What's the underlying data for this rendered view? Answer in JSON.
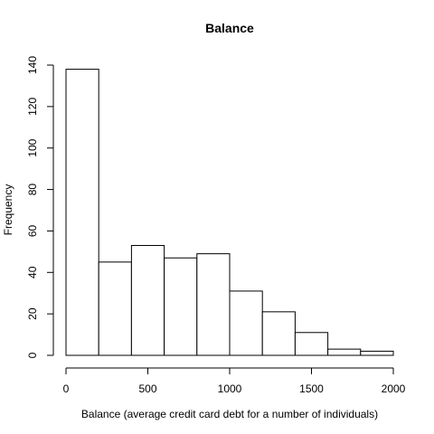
{
  "chart_data": {
    "type": "bar",
    "title": "Balance",
    "xlabel": "Balance (average credit card debt for a number of individuals)",
    "ylabel": "Frequency",
    "bins": [
      {
        "start": 0,
        "end": 200,
        "count": 138
      },
      {
        "start": 200,
        "end": 400,
        "count": 45
      },
      {
        "start": 400,
        "end": 600,
        "count": 53
      },
      {
        "start": 600,
        "end": 800,
        "count": 47
      },
      {
        "start": 800,
        "end": 1000,
        "count": 49
      },
      {
        "start": 1000,
        "end": 1200,
        "count": 31
      },
      {
        "start": 1200,
        "end": 1400,
        "count": 21
      },
      {
        "start": 1400,
        "end": 1600,
        "count": 11
      },
      {
        "start": 1600,
        "end": 1800,
        "count": 3
      },
      {
        "start": 1800,
        "end": 2000,
        "count": 2
      }
    ],
    "xlim": [
      0,
      2000
    ],
    "ylim": [
      0,
      140
    ],
    "xticks": [
      "0",
      "500",
      "1000",
      "1500",
      "2000"
    ],
    "yticks": [
      "0",
      "20",
      "40",
      "60",
      "80",
      "100",
      "120",
      "140"
    ],
    "bar_fill": "#ffffff",
    "bar_stroke": "#000000",
    "grid": false,
    "legend": "none"
  }
}
